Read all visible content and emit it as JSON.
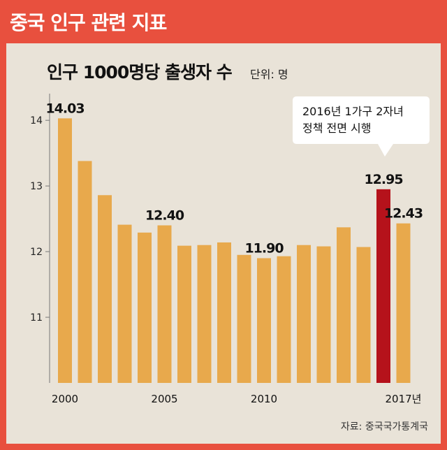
{
  "header": {
    "title": "중국 인구 관련 지표"
  },
  "chart_data": {
    "type": "bar",
    "title": "인구 1000명당 출생자 수",
    "unit": "단위: 명",
    "categories": [
      "2000",
      "2001",
      "2002",
      "2003",
      "2004",
      "2005",
      "2006",
      "2007",
      "2008",
      "2009",
      "2010",
      "2011",
      "2012",
      "2013",
      "2014",
      "2015",
      "2016",
      "2017"
    ],
    "values": [
      14.03,
      13.38,
      12.86,
      12.41,
      12.29,
      12.4,
      12.09,
      12.1,
      12.14,
      11.95,
      11.9,
      11.93,
      12.1,
      12.08,
      12.37,
      12.07,
      12.95,
      12.43
    ],
    "x_tick_labels": [
      {
        "index": 0,
        "label": "2000"
      },
      {
        "index": 5,
        "label": "2005"
      },
      {
        "index": 10,
        "label": "2010"
      },
      {
        "index": 17,
        "label": "2017년"
      }
    ],
    "y_ticks": [
      11,
      12,
      13,
      14
    ],
    "ylim": [
      10,
      14.3
    ],
    "data_labels": [
      {
        "index": 0,
        "label": "14.03"
      },
      {
        "index": 5,
        "label": "12.40"
      },
      {
        "index": 10,
        "label": "11.90"
      },
      {
        "index": 16,
        "label": "12.95"
      },
      {
        "index": 17,
        "label": "12.43"
      }
    ],
    "highlight_index": 16,
    "bar_color": "#e8a94c",
    "highlight_color": "#b5121b",
    "annotation": {
      "index": 16,
      "lines": [
        "2016년 1가구 2자녀",
        "정책 전면 시행"
      ]
    },
    "grid": false
  },
  "source": "자료: 중국국가통계국"
}
